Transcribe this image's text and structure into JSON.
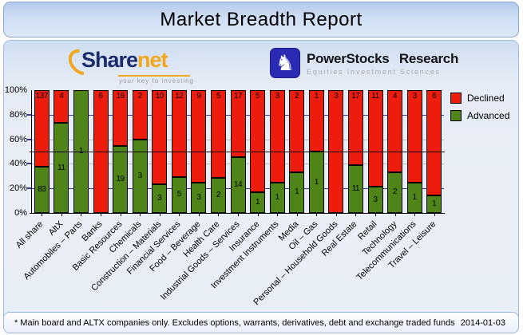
{
  "window": {
    "title": "Market Breadth Report"
  },
  "branding": {
    "sharenet": {
      "name_primary": "Share",
      "name_secondary": "net",
      "tagline": "your key to investing",
      "icon": "sharenet-arc-icon",
      "colors": {
        "navy": "#1b2d6e",
        "orange": "#f2a71b"
      }
    },
    "powerstocks": {
      "name": "PowerStocks Research",
      "tagline": "Equities Investment Sciences",
      "icon": "knight-icon",
      "icon_glyph": "♞",
      "colors": {
        "blue": "#2a2ab2"
      }
    }
  },
  "footer": {
    "note": "* Main board and ALTX companies only. Excludes options, warrants, derivatives, debt and exchange traded funds",
    "date": "2014-01-03"
  },
  "chart_data": {
    "type": "bar",
    "stacked": true,
    "stacking": "percent",
    "title": "Market Breadth Report",
    "categories": [
      "All share",
      "AltX",
      "Automobiles – Parts",
      "Banks",
      "Basic Resources",
      "Chemicals",
      "Construction – Materials",
      "Financial Services",
      "Food – Beverage",
      "Health Care",
      "Industrial Goods – Services",
      "Insurance",
      "Investment Instruments",
      "Media",
      "Oil – Gas",
      "Personal – Household Goods",
      "Real Estate",
      "Retail",
      "Technology",
      "Telecommunications",
      "Travel – Leisure"
    ],
    "series": [
      {
        "name": "Declined",
        "color": "#ed1c0c",
        "values": [
          137,
          4,
          0,
          6,
          16,
          2,
          10,
          12,
          9,
          5,
          17,
          5,
          3,
          2,
          1,
          3,
          17,
          11,
          4,
          3,
          6
        ]
      },
      {
        "name": "Advanced",
        "color": "#4e8418",
        "values": [
          83,
          11,
          1,
          0,
          19,
          3,
          3,
          5,
          3,
          2,
          14,
          1,
          1,
          1,
          1,
          0,
          11,
          3,
          2,
          1,
          1
        ]
      }
    ],
    "y_axis": {
      "min": 0,
      "max": 100,
      "tick_step": 20,
      "ticks": [
        "0%",
        "20%",
        "40%",
        "60%",
        "80%",
        "100%"
      ]
    },
    "reference_line": 50,
    "grid": true,
    "gridline_colors": {
      "80": "#3a3a9c",
      "60": "#bbbbbb",
      "40": "#bbbbbb",
      "20": "#3a3a9c"
    },
    "legend_position": "top-right",
    "bar_value_labels": "counts"
  }
}
